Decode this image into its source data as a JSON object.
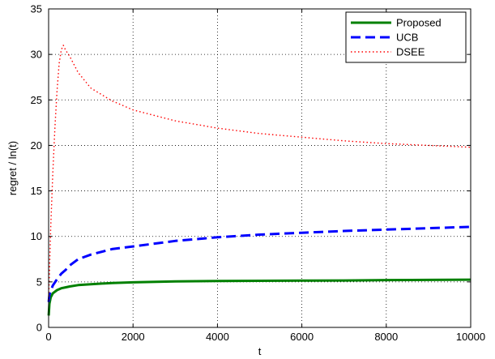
{
  "chart_data": {
    "type": "line",
    "xlabel": "t",
    "ylabel": "regret / ln(t)",
    "xlim": [
      0,
      10000
    ],
    "ylim": [
      0,
      35
    ],
    "xticks": [
      0,
      2000,
      4000,
      6000,
      8000,
      10000
    ],
    "yticks": [
      0,
      5,
      10,
      15,
      20,
      25,
      30,
      35
    ],
    "grid": true,
    "legend_position": "top-right",
    "series": [
      {
        "name": "Proposed",
        "color": "#008000",
        "style": "solid",
        "x": [
          2,
          20,
          50,
          100,
          200,
          300,
          400,
          500,
          700,
          1000,
          1500,
          2000,
          3000,
          4000,
          5000,
          6000,
          7000,
          8000,
          9000,
          10000
        ],
        "y": [
          1.3,
          2.6,
          3.3,
          3.75,
          4.1,
          4.3,
          4.4,
          4.5,
          4.65,
          4.75,
          4.88,
          4.95,
          5.05,
          5.1,
          5.12,
          5.14,
          5.16,
          5.2,
          5.22,
          5.25
        ]
      },
      {
        "name": "UCB",
        "color": "#0000ff",
        "style": "dashed",
        "x": [
          2,
          20,
          50,
          100,
          200,
          300,
          400,
          500,
          700,
          1000,
          1500,
          2000,
          3000,
          4000,
          5000,
          6000,
          7000,
          8000,
          9000,
          10000
        ],
        "y": [
          2.8,
          3.6,
          4.0,
          4.6,
          5.3,
          5.9,
          6.3,
          6.8,
          7.5,
          8.0,
          8.6,
          8.9,
          9.5,
          9.9,
          10.2,
          10.4,
          10.6,
          10.75,
          10.9,
          11.05
        ]
      },
      {
        "name": "DSEE",
        "color": "#ff0000",
        "style": "dotted",
        "x": [
          2,
          20,
          50,
          100,
          150,
          200,
          250,
          300,
          350,
          400,
          500,
          700,
          1000,
          1500,
          2000,
          3000,
          4000,
          5000,
          6000,
          7000,
          8000,
          9000,
          10000
        ],
        "y": [
          3.0,
          6.0,
          11.0,
          17.0,
          22.0,
          26.0,
          29.0,
          30.5,
          31.0,
          30.5,
          29.8,
          28.0,
          26.3,
          24.9,
          23.9,
          22.7,
          21.9,
          21.3,
          20.9,
          20.5,
          20.2,
          20.0,
          19.8
        ]
      }
    ]
  }
}
